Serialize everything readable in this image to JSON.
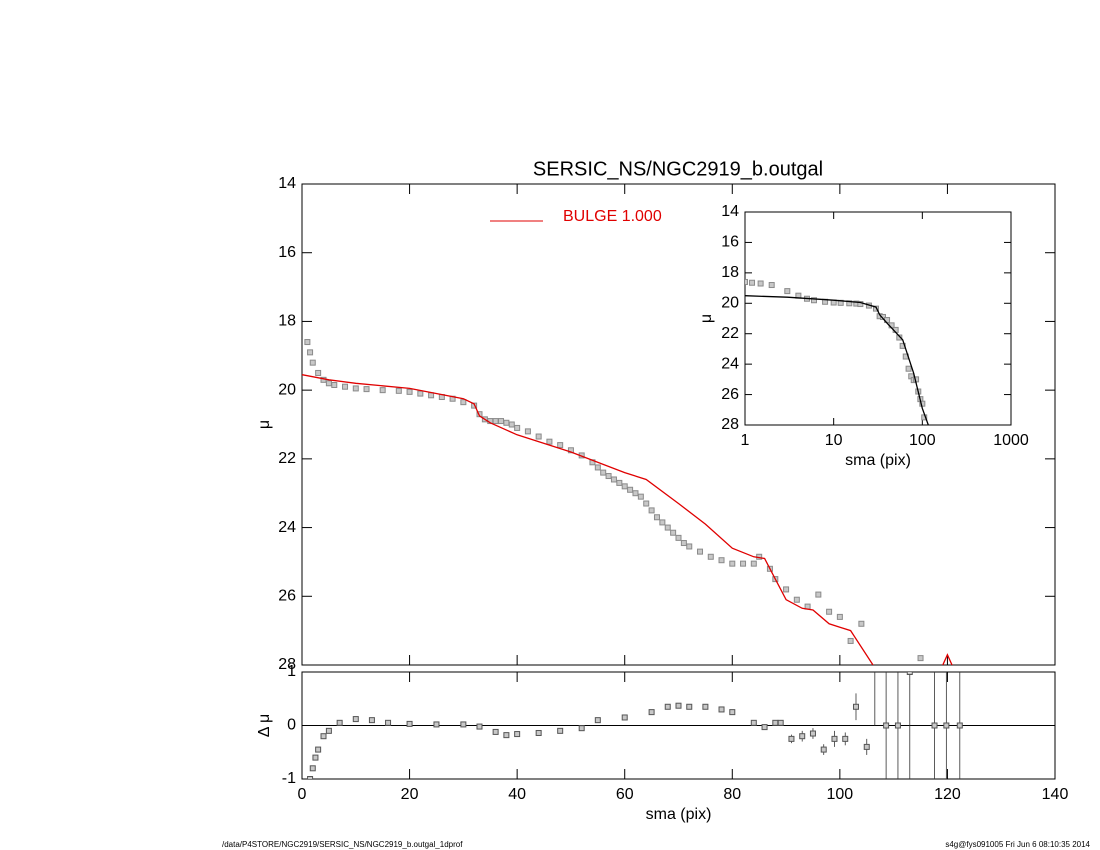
{
  "footer": {
    "left": "/data/P4STORE/NGC2919/SERSIC_NS/NGC2919_b.outgal_1dprof",
    "right": "s4g@fys091005  Fri Jun  6 08:10:35 2014"
  },
  "chart_data": [
    {
      "type": "scatter",
      "title": "SERSIC_NS/NGC2919_b.outgal",
      "ylabel": "μ",
      "xlim": [
        0,
        140
      ],
      "xticks": [
        0,
        20,
        40,
        60,
        80,
        100,
        120,
        140
      ],
      "ylim": [
        28,
        14
      ],
      "yticks": [
        14,
        16,
        18,
        20,
        22,
        24,
        26,
        28
      ],
      "series": [
        {
          "color": "#8a8a8a",
          "marker": "square",
          "x": [
            1,
            1.5,
            2,
            3,
            4,
            5,
            6,
            8,
            10,
            12,
            15,
            18,
            20,
            22,
            24,
            26,
            28,
            30,
            32,
            33,
            34,
            35,
            36,
            37,
            38,
            39,
            40,
            42,
            44,
            46,
            48,
            50,
            52,
            54,
            55,
            56,
            57,
            58,
            59,
            60,
            61,
            62,
            63,
            64,
            65,
            66,
            67,
            68,
            69,
            70,
            71,
            72,
            74,
            76,
            78,
            80,
            82,
            84,
            85,
            87,
            88,
            90,
            92,
            94,
            96,
            98,
            100,
            102,
            104,
            115
          ],
          "values": [
            18.6,
            18.9,
            19.2,
            19.5,
            19.7,
            19.8,
            19.85,
            19.9,
            19.95,
            19.97,
            20.0,
            20.02,
            20.05,
            20.1,
            20.15,
            20.2,
            20.25,
            20.35,
            20.45,
            20.7,
            20.85,
            20.9,
            20.9,
            20.9,
            20.95,
            21.0,
            21.1,
            21.2,
            21.35,
            21.5,
            21.6,
            21.75,
            21.9,
            22.1,
            22.25,
            22.4,
            22.5,
            22.6,
            22.7,
            22.8,
            22.9,
            23.0,
            23.1,
            23.3,
            23.5,
            23.7,
            23.85,
            24.0,
            24.15,
            24.3,
            24.45,
            24.55,
            24.7,
            24.85,
            24.95,
            25.05,
            25.05,
            25.05,
            24.85,
            25.2,
            25.5,
            25.8,
            26.1,
            26.3,
            25.95,
            26.45,
            26.6,
            27.3,
            26.8,
            27.8
          ]
        },
        {
          "name": "BULGE  1.000",
          "color": "#e00000",
          "mode": "line",
          "x": [
            0,
            5,
            10,
            20,
            30,
            32,
            33,
            35,
            40,
            50,
            60,
            64,
            70,
            75,
            80,
            84,
            86,
            88,
            90,
            93,
            95,
            98,
            100,
            102,
            107,
            118,
            120,
            122
          ],
          "values": [
            19.55,
            19.7,
            19.8,
            19.95,
            20.25,
            20.4,
            20.75,
            20.95,
            21.3,
            21.8,
            22.4,
            22.6,
            23.3,
            23.9,
            24.6,
            24.85,
            24.9,
            25.5,
            26.1,
            26.35,
            26.4,
            26.8,
            26.9,
            27.0,
            28.2,
            28.4,
            27.7,
            28.4
          ]
        }
      ]
    },
    {
      "type": "scatter",
      "xlabel": "sma (pix)",
      "ylabel": "μ",
      "xscale": "log",
      "xlim": [
        1,
        1000
      ],
      "xticks": [
        1,
        10,
        100,
        1000
      ],
      "ylim": [
        28,
        14
      ],
      "yticks": [
        14,
        16,
        18,
        20,
        22,
        24,
        26,
        28
      ],
      "series": [
        {
          "color": "#8a8a8a",
          "marker": "square",
          "x": [
            1,
            1.2,
            1.5,
            2,
            3,
            4,
            5,
            6,
            8,
            10,
            12,
            15,
            18,
            20,
            25,
            30,
            33,
            36,
            40,
            45,
            50,
            55,
            60,
            65,
            70,
            75,
            80,
            85,
            90,
            95,
            100,
            105
          ],
          "values": [
            18.6,
            18.65,
            18.7,
            18.8,
            19.2,
            19.5,
            19.7,
            19.8,
            19.9,
            19.95,
            19.97,
            20.0,
            20.02,
            20.05,
            20.15,
            20.35,
            20.85,
            20.9,
            21.1,
            21.45,
            21.75,
            22.25,
            22.8,
            23.5,
            24.3,
            24.8,
            25.05,
            25.0,
            25.8,
            26.3,
            26.6,
            27.5
          ]
        },
        {
          "color": "#000000",
          "mode": "line",
          "x": [
            1,
            3,
            10,
            20,
            30,
            33,
            40,
            60,
            80,
            100,
            120
          ],
          "values": [
            19.5,
            19.6,
            19.8,
            19.95,
            20.25,
            20.75,
            21.3,
            22.4,
            24.6,
            26.9,
            28.2
          ]
        }
      ]
    },
    {
      "type": "scatter",
      "xlabel": "sma (pix)",
      "ylabel": "Δ μ",
      "reference_line": 0,
      "xlim": [
        0,
        140
      ],
      "xticks": [
        0,
        20,
        40,
        60,
        80,
        100,
        120,
        140
      ],
      "ylim": [
        -1,
        1
      ],
      "yticks": [
        -1,
        0,
        1
      ],
      "series": [
        {
          "color": "#555555",
          "marker": "square",
          "x": [
            1.5,
            2,
            2.5,
            3,
            4,
            5,
            7,
            10,
            13,
            16,
            20,
            25,
            30,
            33,
            36,
            38,
            40,
            44,
            48,
            52,
            55,
            60,
            65,
            68,
            70,
            72,
            75,
            78,
            80,
            84,
            86,
            88,
            89,
            91,
            93,
            95,
            97,
            99,
            101,
            103,
            105,
            106.5,
            108.6,
            110.8,
            113,
            117.6,
            119.8,
            122.3
          ],
          "values": [
            -1,
            -0.8,
            -0.6,
            -0.45,
            -0.2,
            -0.1,
            0.05,
            0.12,
            0.1,
            0.05,
            0.03,
            0.02,
            0.02,
            -0.02,
            -0.12,
            -0.18,
            -0.16,
            -0.14,
            -0.1,
            -0.05,
            0.1,
            0.15,
            0.25,
            0.35,
            0.37,
            0.35,
            0.35,
            0.3,
            0.25,
            0.05,
            -0.03,
            0.05,
            0.05,
            -0.25,
            -0.2,
            -0.15,
            -0.45,
            -0.25,
            -0.25,
            0.35,
            -0.4,
            1.5,
            0,
            0,
            1,
            0,
            0,
            0
          ],
          "errors": [
            0.02,
            0.02,
            0.02,
            0.02,
            0.02,
            0.02,
            0.02,
            0.02,
            0.02,
            0.02,
            0.02,
            0.02,
            0.02,
            0.02,
            0.02,
            0.02,
            0.02,
            0.02,
            0.02,
            0.02,
            0.02,
            0.02,
            0.02,
            0.02,
            0.02,
            0.02,
            0.02,
            0.03,
            0.03,
            0.04,
            0.05,
            0.05,
            0.05,
            0.08,
            0.1,
            0.1,
            0.1,
            0.15,
            0.12,
            0.25,
            0.15,
            1.5,
            3,
            3,
            3,
            3,
            3,
            3
          ]
        }
      ]
    }
  ]
}
